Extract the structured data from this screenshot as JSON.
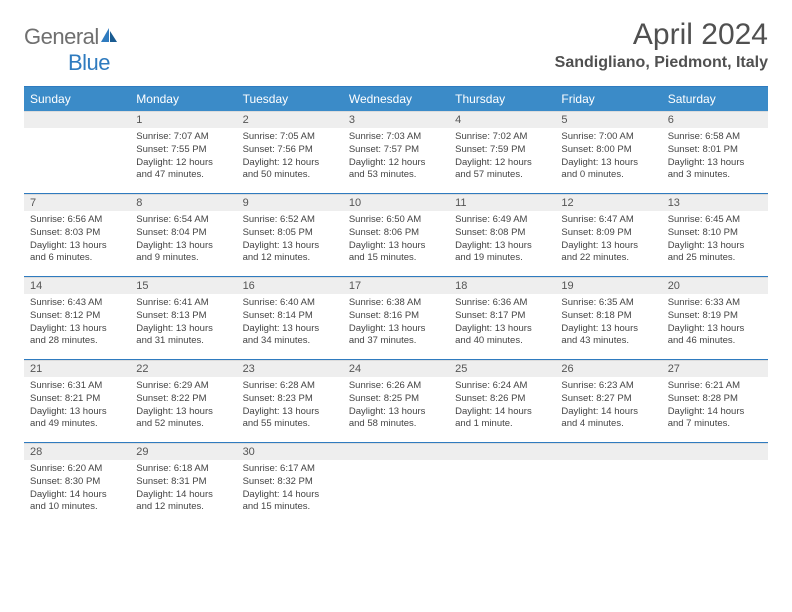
{
  "brand": {
    "text_gray": "General",
    "text_blue": "Blue",
    "logo_color": "#2f7bbf",
    "gray_color": "#6f6f6f"
  },
  "header": {
    "month_title": "April 2024",
    "location": "Sandigliano, Piedmont, Italy"
  },
  "colors": {
    "header_bg": "#3b8bc8",
    "header_text": "#ffffff",
    "day_strip_bg": "#eeeeee",
    "body_text": "#444444",
    "rule_color": "#2f7bbf"
  },
  "weekdays": [
    "Sunday",
    "Monday",
    "Tuesday",
    "Wednesday",
    "Thursday",
    "Friday",
    "Saturday"
  ],
  "weeks": [
    [
      null,
      {
        "n": "1",
        "sr": "Sunrise: 7:07 AM",
        "ss": "Sunset: 7:55 PM",
        "dl": "Daylight: 12 hours and 47 minutes."
      },
      {
        "n": "2",
        "sr": "Sunrise: 7:05 AM",
        "ss": "Sunset: 7:56 PM",
        "dl": "Daylight: 12 hours and 50 minutes."
      },
      {
        "n": "3",
        "sr": "Sunrise: 7:03 AM",
        "ss": "Sunset: 7:57 PM",
        "dl": "Daylight: 12 hours and 53 minutes."
      },
      {
        "n": "4",
        "sr": "Sunrise: 7:02 AM",
        "ss": "Sunset: 7:59 PM",
        "dl": "Daylight: 12 hours and 57 minutes."
      },
      {
        "n": "5",
        "sr": "Sunrise: 7:00 AM",
        "ss": "Sunset: 8:00 PM",
        "dl": "Daylight: 13 hours and 0 minutes."
      },
      {
        "n": "6",
        "sr": "Sunrise: 6:58 AM",
        "ss": "Sunset: 8:01 PM",
        "dl": "Daylight: 13 hours and 3 minutes."
      }
    ],
    [
      {
        "n": "7",
        "sr": "Sunrise: 6:56 AM",
        "ss": "Sunset: 8:03 PM",
        "dl": "Daylight: 13 hours and 6 minutes."
      },
      {
        "n": "8",
        "sr": "Sunrise: 6:54 AM",
        "ss": "Sunset: 8:04 PM",
        "dl": "Daylight: 13 hours and 9 minutes."
      },
      {
        "n": "9",
        "sr": "Sunrise: 6:52 AM",
        "ss": "Sunset: 8:05 PM",
        "dl": "Daylight: 13 hours and 12 minutes."
      },
      {
        "n": "10",
        "sr": "Sunrise: 6:50 AM",
        "ss": "Sunset: 8:06 PM",
        "dl": "Daylight: 13 hours and 15 minutes."
      },
      {
        "n": "11",
        "sr": "Sunrise: 6:49 AM",
        "ss": "Sunset: 8:08 PM",
        "dl": "Daylight: 13 hours and 19 minutes."
      },
      {
        "n": "12",
        "sr": "Sunrise: 6:47 AM",
        "ss": "Sunset: 8:09 PM",
        "dl": "Daylight: 13 hours and 22 minutes."
      },
      {
        "n": "13",
        "sr": "Sunrise: 6:45 AM",
        "ss": "Sunset: 8:10 PM",
        "dl": "Daylight: 13 hours and 25 minutes."
      }
    ],
    [
      {
        "n": "14",
        "sr": "Sunrise: 6:43 AM",
        "ss": "Sunset: 8:12 PM",
        "dl": "Daylight: 13 hours and 28 minutes."
      },
      {
        "n": "15",
        "sr": "Sunrise: 6:41 AM",
        "ss": "Sunset: 8:13 PM",
        "dl": "Daylight: 13 hours and 31 minutes."
      },
      {
        "n": "16",
        "sr": "Sunrise: 6:40 AM",
        "ss": "Sunset: 8:14 PM",
        "dl": "Daylight: 13 hours and 34 minutes."
      },
      {
        "n": "17",
        "sr": "Sunrise: 6:38 AM",
        "ss": "Sunset: 8:16 PM",
        "dl": "Daylight: 13 hours and 37 minutes."
      },
      {
        "n": "18",
        "sr": "Sunrise: 6:36 AM",
        "ss": "Sunset: 8:17 PM",
        "dl": "Daylight: 13 hours and 40 minutes."
      },
      {
        "n": "19",
        "sr": "Sunrise: 6:35 AM",
        "ss": "Sunset: 8:18 PM",
        "dl": "Daylight: 13 hours and 43 minutes."
      },
      {
        "n": "20",
        "sr": "Sunrise: 6:33 AM",
        "ss": "Sunset: 8:19 PM",
        "dl": "Daylight: 13 hours and 46 minutes."
      }
    ],
    [
      {
        "n": "21",
        "sr": "Sunrise: 6:31 AM",
        "ss": "Sunset: 8:21 PM",
        "dl": "Daylight: 13 hours and 49 minutes."
      },
      {
        "n": "22",
        "sr": "Sunrise: 6:29 AM",
        "ss": "Sunset: 8:22 PM",
        "dl": "Daylight: 13 hours and 52 minutes."
      },
      {
        "n": "23",
        "sr": "Sunrise: 6:28 AM",
        "ss": "Sunset: 8:23 PM",
        "dl": "Daylight: 13 hours and 55 minutes."
      },
      {
        "n": "24",
        "sr": "Sunrise: 6:26 AM",
        "ss": "Sunset: 8:25 PM",
        "dl": "Daylight: 13 hours and 58 minutes."
      },
      {
        "n": "25",
        "sr": "Sunrise: 6:24 AM",
        "ss": "Sunset: 8:26 PM",
        "dl": "Daylight: 14 hours and 1 minute."
      },
      {
        "n": "26",
        "sr": "Sunrise: 6:23 AM",
        "ss": "Sunset: 8:27 PM",
        "dl": "Daylight: 14 hours and 4 minutes."
      },
      {
        "n": "27",
        "sr": "Sunrise: 6:21 AM",
        "ss": "Sunset: 8:28 PM",
        "dl": "Daylight: 14 hours and 7 minutes."
      }
    ],
    [
      {
        "n": "28",
        "sr": "Sunrise: 6:20 AM",
        "ss": "Sunset: 8:30 PM",
        "dl": "Daylight: 14 hours and 10 minutes."
      },
      {
        "n": "29",
        "sr": "Sunrise: 6:18 AM",
        "ss": "Sunset: 8:31 PM",
        "dl": "Daylight: 14 hours and 12 minutes."
      },
      {
        "n": "30",
        "sr": "Sunrise: 6:17 AM",
        "ss": "Sunset: 8:32 PM",
        "dl": "Daylight: 14 hours and 15 minutes."
      },
      null,
      null,
      null,
      null
    ]
  ]
}
